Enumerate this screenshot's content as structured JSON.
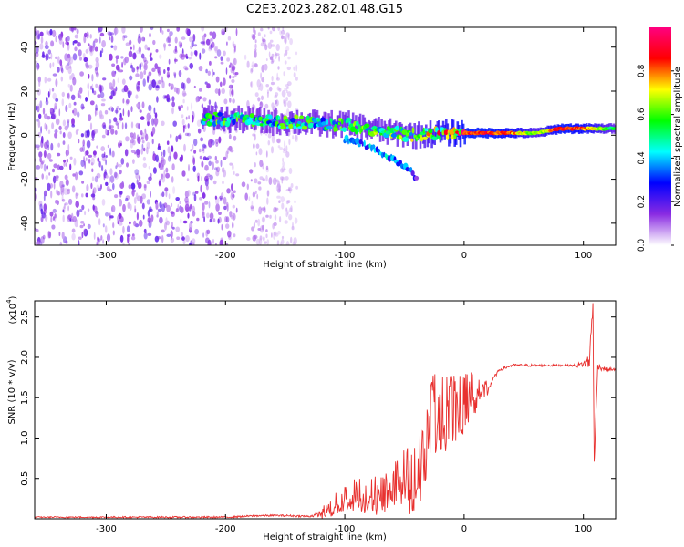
{
  "title": "C2E3.2023.282.01.48.G15",
  "chart_data": [
    {
      "type": "heatmap",
      "name": "spectrogram",
      "xlabel": "Height of straight line (km)",
      "ylabel": "Frequency (Hz)",
      "xlim": [
        -360,
        127
      ],
      "ylim": [
        -50,
        49
      ],
      "xticks": [
        -300,
        -200,
        -100,
        0,
        100
      ],
      "yticks": [
        -40,
        -20,
        0,
        20,
        40
      ],
      "colorbar": {
        "label": "Normalized spectral amplitude",
        "range": [
          0,
          1
        ],
        "ticks": [
          "0.0",
          "0.2",
          "0.4",
          "0.6",
          "0.8"
        ],
        "colormap": "rainbow (white → purple → blue → cyan → green → yellow → red → magenta)",
        "colors": [
          "#ffffff",
          "#8a2be2",
          "#0000ff",
          "#00ffff",
          "#00ff00",
          "#ffff00",
          "#ff0000",
          "#ff0080"
        ]
      },
      "noise_region": {
        "x_range": [
          -360,
          -140
        ],
        "y_range": [
          -50,
          49
        ],
        "amplitude": [
          0.05,
          0.2
        ],
        "gap_x": [
          -190,
          -180
        ]
      },
      "ridge": [
        {
          "x": -220,
          "freq": 8,
          "amp": 0.45
        },
        {
          "x": -200,
          "freq": 7,
          "amp": 0.5
        },
        {
          "x": -180,
          "freq": 7,
          "amp": 0.45
        },
        {
          "x": -160,
          "freq": 6,
          "amp": 0.45
        },
        {
          "x": -140,
          "freq": 6,
          "amp": 0.5
        },
        {
          "x": -120,
          "freq": 5,
          "amp": 0.45
        },
        {
          "x": -100,
          "freq": 5,
          "amp": 0.5
        },
        {
          "x": -80,
          "freq": 3,
          "amp": 0.5
        },
        {
          "x": -60,
          "freq": 1,
          "amp": 0.5
        },
        {
          "x": -40,
          "freq": 0,
          "amp": 0.55
        },
        {
          "x": -20,
          "freq": 1,
          "amp": 0.7
        },
        {
          "x": 0,
          "freq": 1,
          "amp": 0.85
        },
        {
          "x": 20,
          "freq": 1,
          "amp": 0.85
        },
        {
          "x": 40,
          "freq": 1,
          "amp": 0.8
        },
        {
          "x": 60,
          "freq": 1,
          "amp": 0.6
        },
        {
          "x": 80,
          "freq": 3,
          "amp": 0.85
        },
        {
          "x": 100,
          "freq": 3,
          "amp": 0.8
        },
        {
          "x": 127,
          "freq": 3,
          "amp": 0.5
        }
      ],
      "secondary_branch": [
        {
          "x": -100,
          "freq": -2,
          "amp": 0.35
        },
        {
          "x": -80,
          "freq": -5,
          "amp": 0.4
        },
        {
          "x": -60,
          "freq": -11,
          "amp": 0.4
        },
        {
          "x": -45,
          "freq": -16,
          "amp": 0.35
        },
        {
          "x": -40,
          "freq": -20,
          "amp": 0.2
        }
      ]
    },
    {
      "type": "line",
      "name": "snr",
      "xlabel": "Height of straight line (km)",
      "ylabel": "SNR (10 * v/v)",
      "scale_label": "(x10",
      "scale_exp": "4",
      "color": "#e8312f",
      "xlim": [
        -360,
        127
      ],
      "ylim": [
        0,
        2.7
      ],
      "xticks": [
        -300,
        -200,
        -100,
        0,
        100
      ],
      "yticks": [
        "0.5",
        "1.0",
        "1.5",
        "2.0",
        "2.5"
      ],
      "points": [
        [
          -360,
          0.02
        ],
        [
          -300,
          0.02
        ],
        [
          -250,
          0.02
        ],
        [
          -200,
          0.02
        ],
        [
          -170,
          0.04
        ],
        [
          -150,
          0.04
        ],
        [
          -130,
          0.03
        ],
        [
          -120,
          0.06
        ],
        [
          -110,
          0.15
        ],
        [
          -100,
          0.25
        ],
        [
          -90,
          0.3
        ],
        [
          -80,
          0.28
        ],
        [
          -70,
          0.3
        ],
        [
          -60,
          0.4
        ],
        [
          -50,
          0.5
        ],
        [
          -40,
          0.45
        ],
        [
          -35,
          0.7
        ],
        [
          -30,
          1.0
        ],
        [
          -25,
          1.3
        ],
        [
          -20,
          1.3
        ],
        [
          -10,
          1.35
        ],
        [
          0,
          1.4
        ],
        [
          5,
          1.55
        ],
        [
          10,
          1.5
        ],
        [
          15,
          1.55
        ],
        [
          20,
          1.6
        ],
        [
          25,
          1.75
        ],
        [
          30,
          1.85
        ],
        [
          40,
          1.9
        ],
        [
          50,
          1.9
        ],
        [
          60,
          1.9
        ],
        [
          80,
          1.9
        ],
        [
          95,
          1.9
        ],
        [
          100,
          1.92
        ],
        [
          105,
          1.95
        ],
        [
          108,
          2.7
        ],
        [
          109,
          0.65
        ],
        [
          112,
          1.9
        ],
        [
          115,
          1.87
        ],
        [
          120,
          1.85
        ],
        [
          127,
          1.85
        ]
      ],
      "noise_amplitude": [
        [
          -360,
          0.02
        ],
        [
          -130,
          0.03
        ],
        [
          -115,
          0.1
        ],
        [
          -100,
          0.2
        ],
        [
          -60,
          0.3
        ],
        [
          -40,
          0.5
        ],
        [
          -30,
          0.6
        ],
        [
          -20,
          0.5
        ],
        [
          -5,
          0.45
        ],
        [
          10,
          0.25
        ],
        [
          25,
          0.05
        ],
        [
          90,
          0.03
        ],
        [
          100,
          0.1
        ],
        [
          106,
          0.3
        ],
        [
          112,
          0.1
        ],
        [
          127,
          0.03
        ]
      ]
    }
  ]
}
